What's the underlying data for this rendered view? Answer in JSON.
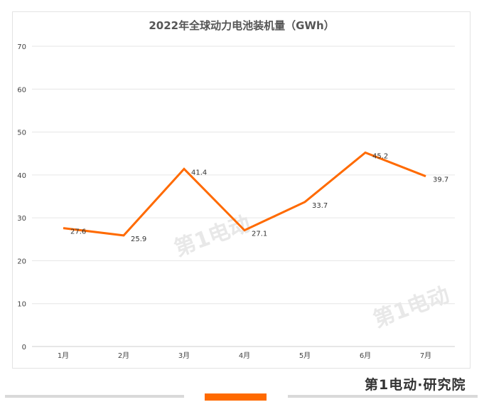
{
  "chart_data": {
    "type": "line",
    "title": "2022年全球动力电池装机量（GWh）",
    "categories": [
      "1月",
      "2月",
      "3月",
      "4月",
      "5月",
      "6月",
      "7月"
    ],
    "series": [
      {
        "values": [
          27.6,
          25.9,
          41.4,
          27.1,
          33.7,
          45.2,
          39.7
        ],
        "color": "#ff6a00"
      }
    ],
    "ylim": [
      0,
      70
    ],
    "yticks": [
      0,
      10,
      20,
      30,
      40,
      50,
      60,
      70
    ],
    "grid": true,
    "data_labels": true,
    "legend": "none"
  },
  "watermark": "第1电动",
  "footer": {
    "logo_text": "第1电动·研究院",
    "accent_color": "#ff6a00"
  }
}
